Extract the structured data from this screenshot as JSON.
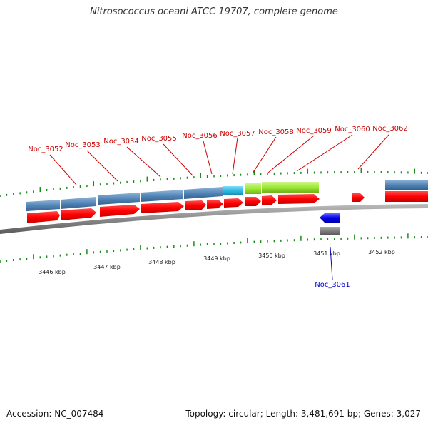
{
  "title": "Nitrosococcus oceani ATCC 19707, complete genome",
  "footer": {
    "accession_label": "Accession:",
    "accession": "NC_007484",
    "topology_label": "Topology:",
    "topology": "circular",
    "length_label": "Length:",
    "length": "3,481,691 bp",
    "genes_label": "Genes:",
    "genes": "3,027"
  },
  "scale_labels": [
    "3446 kbp",
    "3447 kbp",
    "3448 kbp",
    "3449 kbp",
    "3450 kbp",
    "3451 kbp",
    "3452 kbp"
  ],
  "genes": [
    {
      "name": "Noc_3052",
      "strand": "+"
    },
    {
      "name": "Noc_3053",
      "strand": "+"
    },
    {
      "name": "Noc_3054",
      "strand": "+"
    },
    {
      "name": "Noc_3055",
      "strand": "+"
    },
    {
      "name": "Noc_3056",
      "strand": "+"
    },
    {
      "name": "Noc_3057",
      "strand": "+"
    },
    {
      "name": "Noc_3058",
      "strand": "+"
    },
    {
      "name": "Noc_3059",
      "strand": "+"
    },
    {
      "name": "Noc_3060",
      "strand": "+"
    },
    {
      "name": "Noc_3061",
      "strand": "-"
    },
    {
      "name": "Noc_3062",
      "strand": "+"
    }
  ],
  "colors": {
    "plus_strand": "#ff0000",
    "minus_strand": "#0000ee",
    "label_plus": "#cc0000",
    "label_minus": "#0000cc",
    "feature_blue": "#4f83b5",
    "feature_cyan": "#29b6e0",
    "feature_green": "#99e62e",
    "feature_gray": "#777777",
    "ticks": "#1a8c1a"
  }
}
